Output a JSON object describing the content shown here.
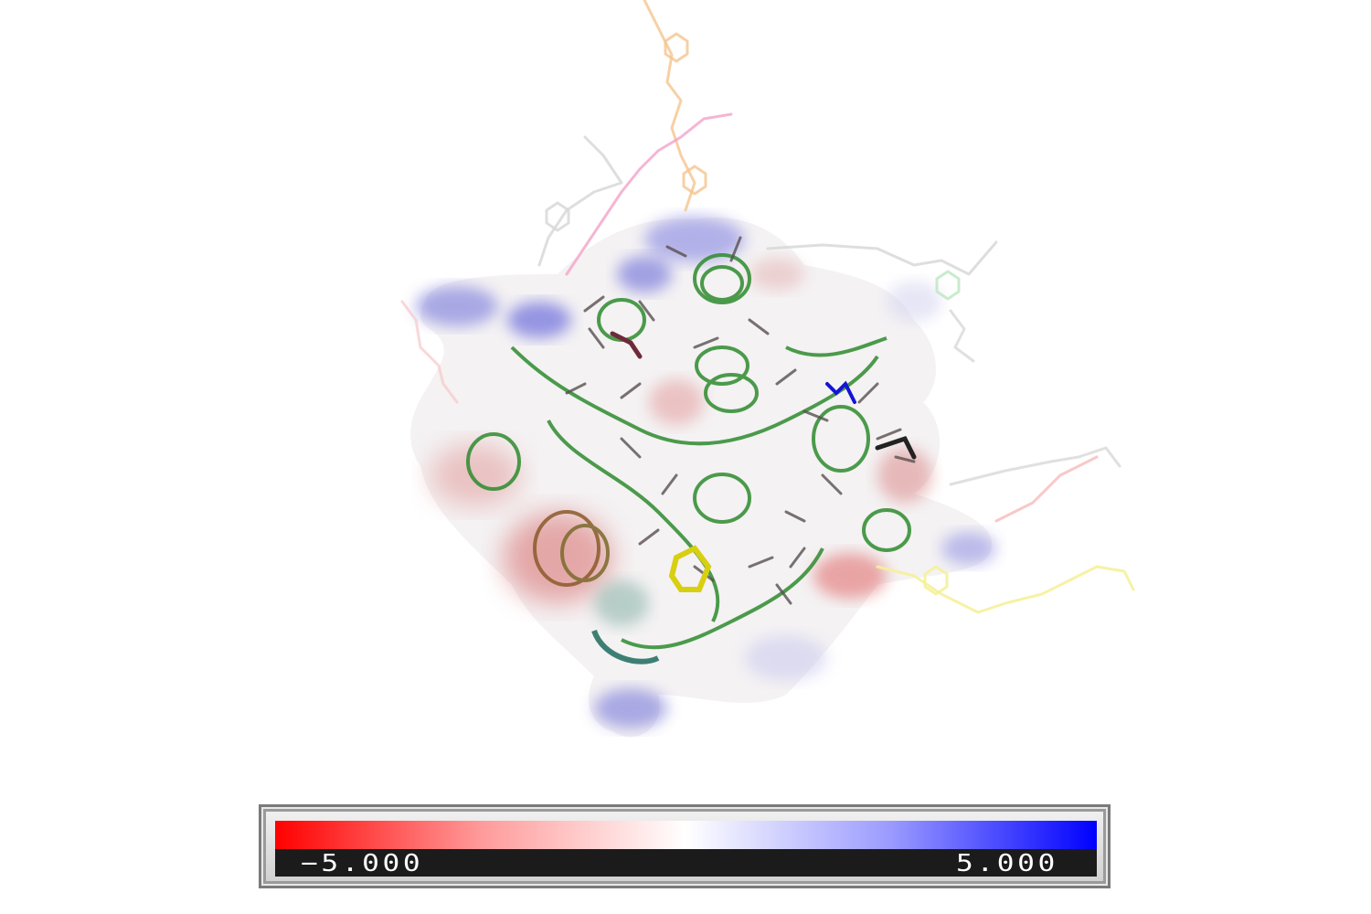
{
  "scale_bar": {
    "min_label": "−5.000",
    "max_label": "5.000",
    "min_color": "#ff0000",
    "mid_color": "#ffffff",
    "max_color": "#0000ff"
  },
  "colors": {
    "surface_positive": "#7b7bd6",
    "surface_negative": "#d96a6a",
    "surface_neutral": "#eeeeee",
    "cartoon": "#2e8b2e",
    "ligand_colors": [
      "#f5c48e",
      "#f3a3c8",
      "#d8d8d8",
      "#f5f19a",
      "#bfe8c4",
      "#f7b0b0"
    ]
  }
}
